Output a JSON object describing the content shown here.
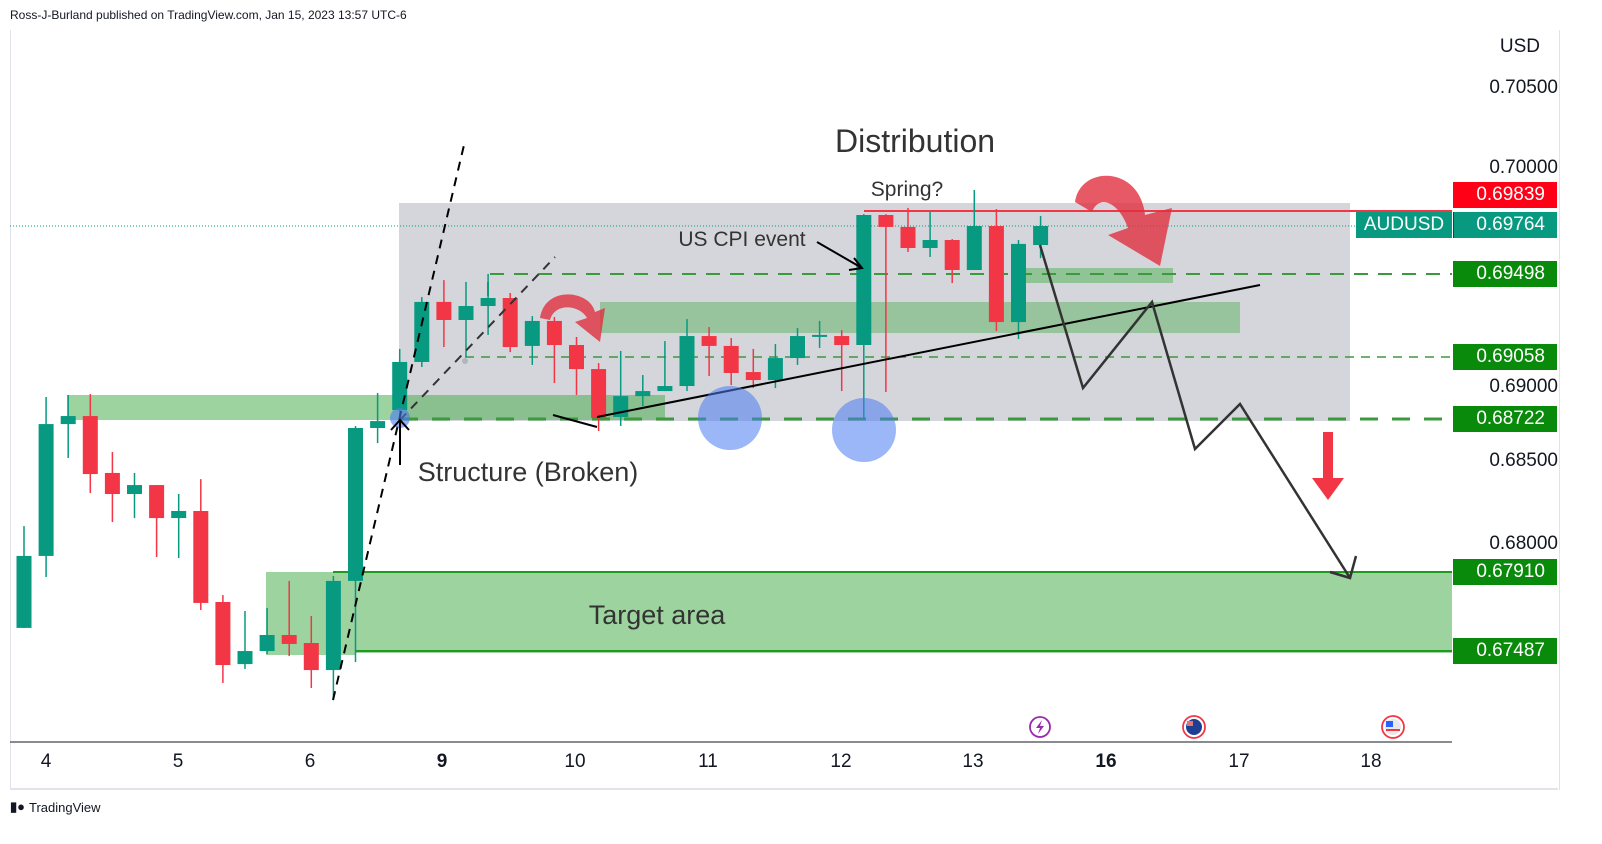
{
  "header": {
    "published": "Ross-J-Burland published on TradingView.com, Jan 15, 2023 13:57 UTC-6"
  },
  "branding": {
    "logo_text": "TradingView"
  },
  "colors": {
    "up": "#089981",
    "down": "#f23645",
    "zone": "#4caf50",
    "range": "#b2b5be",
    "last_price": "#089981",
    "high_line": "#ff0000",
    "level_tag": "#0a8a0a",
    "marker": "#4a7cf0"
  },
  "chart_data": {
    "type": "candlestick",
    "symbol": "AUDUSD",
    "currency": "USD",
    "ylim": [
      0.6715,
      0.7066
    ],
    "y_ticks": [
      "0.70500",
      "0.70000",
      "0.69000",
      "0.68500",
      "0.68000"
    ],
    "x_ticks": [
      {
        "label": "4",
        "bold": false
      },
      {
        "label": "5",
        "bold": false
      },
      {
        "label": "6",
        "bold": false
      },
      {
        "label": "9",
        "bold": true
      },
      {
        "label": "10",
        "bold": false
      },
      {
        "label": "11",
        "bold": false
      },
      {
        "label": "12",
        "bold": false
      },
      {
        "label": "13",
        "bold": false
      },
      {
        "label": "16",
        "bold": true
      },
      {
        "label": "17",
        "bold": false
      },
      {
        "label": "18",
        "bold": false
      }
    ],
    "candles_ohlc": [
      [
        0.67605,
        0.68151,
        0.67605,
        0.67991
      ],
      [
        0.67991,
        0.68843,
        0.67878,
        0.68698
      ],
      [
        0.68698,
        0.68854,
        0.68516,
        0.68741
      ],
      [
        0.68741,
        0.68859,
        0.68328,
        0.6843
      ],
      [
        0.68436,
        0.68548,
        0.68173,
        0.68323
      ],
      [
        0.68323,
        0.68436,
        0.68194,
        0.68371
      ],
      [
        0.68371,
        0.68371,
        0.67985,
        0.68194
      ],
      [
        0.68194,
        0.68323,
        0.6798,
        0.68232
      ],
      [
        0.68232,
        0.68403,
        0.67701,
        0.67739
      ],
      [
        0.67744,
        0.67781,
        0.6731,
        0.67406
      ],
      [
        0.67411,
        0.67696,
        0.67385,
        0.67481
      ],
      [
        0.67481,
        0.67712,
        0.67465,
        0.67567
      ],
      [
        0.67567,
        0.67857,
        0.67454,
        0.67519
      ],
      [
        0.67524,
        0.67669,
        0.67283,
        0.67379
      ],
      [
        0.67379,
        0.67883,
        0.67218,
        0.67857
      ],
      [
        0.67857,
        0.68688,
        0.67422,
        0.68677
      ],
      [
        0.68677,
        0.68865,
        0.68596,
        0.68714
      ],
      [
        0.68773,
        0.69101,
        0.68731,
        0.69031
      ],
      [
        0.69031,
        0.69379,
        0.69004,
        0.69353
      ],
      [
        0.69353,
        0.6947,
        0.69111,
        0.69256
      ],
      [
        0.69256,
        0.6946,
        0.69058,
        0.69331
      ],
      [
        0.69331,
        0.69503,
        0.69176,
        0.69374
      ],
      [
        0.69374,
        0.69401,
        0.69084,
        0.69111
      ],
      [
        0.69117,
        0.69277,
        0.69015,
        0.69251
      ],
      [
        0.69251,
        0.69272,
        0.68918,
        0.69122
      ],
      [
        0.69122,
        0.69165,
        0.68854,
        0.68993
      ],
      [
        0.68993,
        0.69025,
        0.68661,
        0.68731
      ],
      [
        0.68736,
        0.6909,
        0.68688,
        0.68848
      ],
      [
        0.68848,
        0.68961,
        0.68795,
        0.68875
      ],
      [
        0.68875,
        0.69143,
        0.68875,
        0.68902
      ],
      [
        0.68902,
        0.69261,
        0.68875,
        0.6917
      ],
      [
        0.6917,
        0.69218,
        0.68956,
        0.69117
      ],
      [
        0.69117,
        0.69159,
        0.68907,
        0.68972
      ],
      [
        0.68977,
        0.69101,
        0.68891,
        0.68934
      ],
      [
        0.68934,
        0.69127,
        0.68891,
        0.69052
      ],
      [
        0.69052,
        0.69213,
        0.69015,
        0.6917
      ],
      [
        0.6917,
        0.69251,
        0.69106,
        0.69176
      ],
      [
        0.6917,
        0.69202,
        0.68875,
        0.69122
      ],
      [
        0.69122,
        0.69824,
        0.6872,
        0.69819
      ],
      [
        0.69819,
        0.69824,
        0.6887,
        0.69755
      ],
      [
        0.69755,
        0.69857,
        0.69621,
        0.69642
      ],
      [
        0.69642,
        0.69835,
        0.69594,
        0.69685
      ],
      [
        0.69685,
        0.6969,
        0.69454,
        0.69524
      ],
      [
        0.69524,
        0.69953,
        0.69524,
        0.6976
      ],
      [
        0.6976,
        0.69851,
        0.69197,
        0.69245
      ],
      [
        0.69245,
        0.69685,
        0.69154,
        0.69664
      ],
      [
        0.69658,
        0.69814,
        0.69588,
        0.6976
      ]
    ],
    "price_tags": {
      "high": "0.69839",
      "last_symbol": "AUDUSD",
      "last": "0.69764",
      "level1": "0.69498",
      "level2": "0.69058",
      "level3": "0.68722",
      "target_top": "0.67910",
      "target_bottom": "0.67487"
    },
    "annotations": {
      "title": "Distribution",
      "spring": "Spring?",
      "cpi": "US CPI event",
      "structure": "Structure (Broken)",
      "target": "Target area"
    }
  }
}
